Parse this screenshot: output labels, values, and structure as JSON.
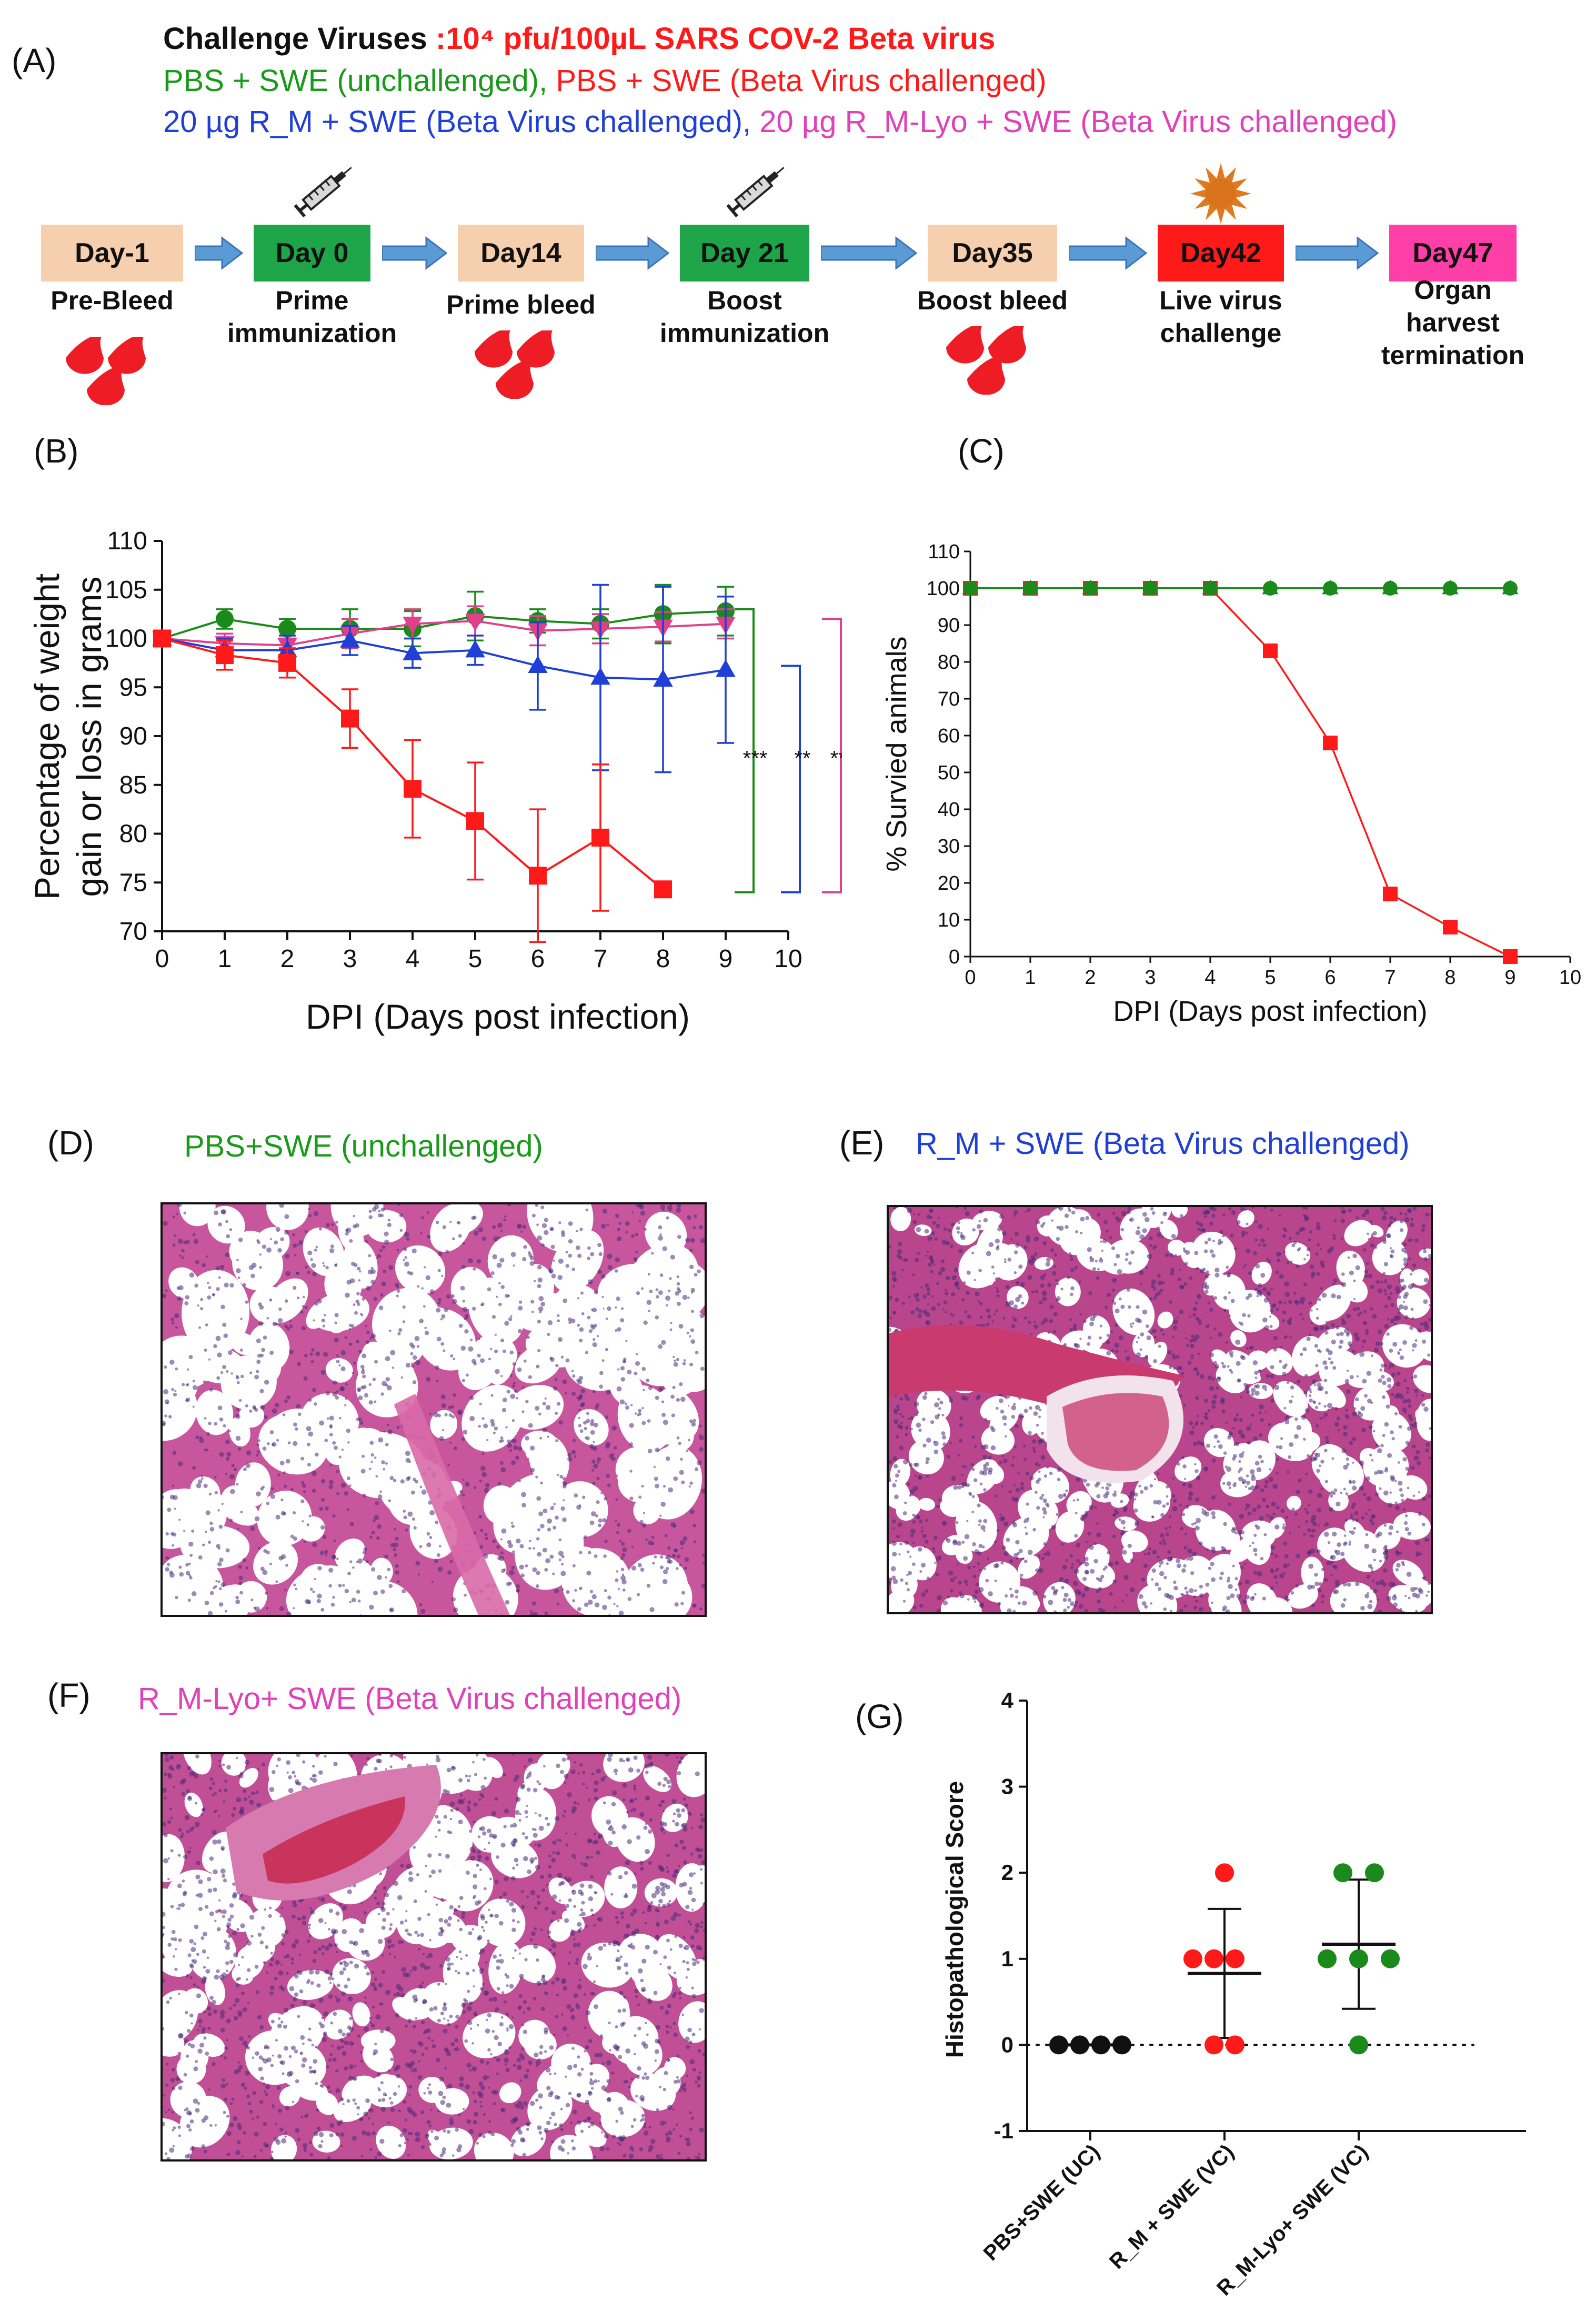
{
  "panelA": {
    "letter": "(A)",
    "line1_prefix": "Challenge Viruses ",
    "line1_highlight": ":10⁴ pfu/100µL SARS COV-2 Beta virus",
    "line2_part1": "PBS + SWE (unchallenged), ",
    "line2_part2": "PBS + SWE (Beta Virus challenged)",
    "line3_part1": "20 µg R_M + SWE (Beta Virus challenged), ",
    "line3_part2": "20 µg R_M-Lyo + SWE (Beta Virus challenged)",
    "timeline": [
      {
        "day": "Day-1",
        "label": "Pre-Bleed",
        "color": "#f6cfae",
        "icon": "blood-drops-icon"
      },
      {
        "day": "Day 0",
        "label": "Prime\nimmunization",
        "color": "#1ea54a",
        "icon": "syringe-icon"
      },
      {
        "day": "Day14",
        "label": "Prime bleed",
        "color": "#f6cfae",
        "icon": "blood-drops-icon"
      },
      {
        "day": "Day 21",
        "label": "Boost\nimmunization",
        "color": "#1ea54a",
        "icon": "syringe-icon"
      },
      {
        "day": "Day35",
        "label": "Boost bleed",
        "color": "#f6cfae",
        "icon": "blood-drops-icon"
      },
      {
        "day": "Day42",
        "label": "Live virus\nchallenge",
        "color": "#ff1a1a",
        "icon": "virus-icon"
      },
      {
        "day": "Day47",
        "label": "Organ\nharvest\ntermination",
        "color": "#ff3fa8",
        "icon": ""
      }
    ]
  },
  "panelB": {
    "letter": "(B)"
  },
  "panelC": {
    "letter": "(C)"
  },
  "panelD": {
    "letter": "(D)",
    "title": "PBS+SWE (unchallenged)",
    "title_color": "#1a9a1a"
  },
  "panelE": {
    "letter": "(E)",
    "title": "R_M + SWE  (Beta Virus challenged)",
    "title_color": "#1f3fd6"
  },
  "panelF": {
    "letter": "(F)",
    "title": "R_M-Lyo+ SWE (Beta Virus challenged)",
    "title_color": "#e040b8"
  },
  "panelG": {
    "letter": "(G)"
  },
  "chart_data": [
    {
      "id": "B",
      "type": "line",
      "title": "",
      "xlabel": "DPI (Days post infection)",
      "ylabel": "Percentage of weight gain or loss in grams",
      "xlim": [
        0,
        10
      ],
      "ylim": [
        70,
        110
      ],
      "xticks": [
        0,
        1,
        2,
        3,
        4,
        5,
        6,
        7,
        8,
        9,
        10
      ],
      "yticks": [
        70,
        75,
        80,
        85,
        90,
        95,
        100,
        105,
        110
      ],
      "series": [
        {
          "name": "PBS + SWE (unchallenged)",
          "color": "#1a8a1a",
          "marker": "circle",
          "x": [
            0,
            1,
            2,
            3,
            4,
            5,
            6,
            7,
            8,
            9
          ],
          "y": [
            100,
            102,
            101,
            101,
            101,
            102.3,
            101.8,
            101.5,
            102.5,
            102.8
          ],
          "err": [
            0.5,
            1.0,
            1.0,
            2.0,
            1.8,
            2.5,
            1.2,
            1.5,
            3.0,
            2.5
          ]
        },
        {
          "name": "PBS + SWE (Beta Virus challenged)",
          "color": "#ff1a1a",
          "marker": "square",
          "x": [
            0,
            1,
            2,
            3,
            4,
            5,
            6,
            7,
            8
          ],
          "y": [
            100,
            98.3,
            97.5,
            91.8,
            84.6,
            81.3,
            75.7,
            79.6,
            74.3
          ],
          "err": [
            0.5,
            1.5,
            1.5,
            3.0,
            5.0,
            6.0,
            6.8,
            7.5,
            0
          ]
        },
        {
          "name": "20 µg R_M + SWE (Beta Virus challenged)",
          "color": "#1f3fd6",
          "marker": "triangle",
          "x": [
            0,
            1,
            2,
            3,
            4,
            5,
            6,
            7,
            8,
            9
          ],
          "y": [
            100,
            98.8,
            98.8,
            99.8,
            98.5,
            98.8,
            97.2,
            96,
            95.8,
            96.8
          ],
          "err": [
            0.5,
            1.2,
            1.5,
            1.5,
            1.5,
            1.5,
            4.5,
            9.5,
            9.5,
            7.5
          ]
        },
        {
          "name": "20 µg R_M-Lyo + SWE (Beta Virus challenged)",
          "color": "#e0408a",
          "marker": "triangle-down",
          "x": [
            0,
            1,
            2,
            3,
            4,
            5,
            6,
            7,
            8,
            9
          ],
          "y": [
            100,
            99.5,
            99.3,
            100.5,
            101.5,
            101.8,
            100.8,
            101,
            101.2,
            101.5
          ],
          "err": [
            0.5,
            1.0,
            1.0,
            1.5,
            1.5,
            1.5,
            1.5,
            1.5,
            1.5,
            1.5
          ]
        }
      ],
      "significance": [
        {
          "label": "***",
          "color": "#1a8a1a",
          "y_top": 103,
          "y_bottom": 74
        },
        {
          "label": "**",
          "color": "#1f3fd6",
          "y_top": 97.2,
          "y_bottom": 74
        },
        {
          "label": "***",
          "color": "#e0408a",
          "y_top": 102,
          "y_bottom": 74
        }
      ]
    },
    {
      "id": "C",
      "type": "line",
      "title": "",
      "xlabel": "DPI (Days post infection)",
      "ylabel": "% Survied animals",
      "xlim": [
        0,
        10
      ],
      "ylim": [
        0,
        110
      ],
      "xticks": [
        0,
        1,
        2,
        3,
        4,
        5,
        6,
        7,
        8,
        9,
        10
      ],
      "yticks": [
        0,
        10,
        20,
        30,
        40,
        50,
        60,
        70,
        80,
        90,
        100,
        110
      ],
      "series": [
        {
          "name": "PBS + SWE (unchallenged)",
          "color": "#1a8a1a",
          "marker": "circle",
          "x": [
            0,
            1,
            2,
            3,
            4,
            5,
            6,
            7,
            8,
            9
          ],
          "y": [
            100,
            100,
            100,
            100,
            100,
            100,
            100,
            100,
            100,
            100
          ]
        },
        {
          "name": "R_M + SWE",
          "color": "#1f3fd6",
          "marker": "triangle",
          "x": [
            0,
            1,
            2,
            3,
            4,
            5,
            6,
            7,
            8,
            9
          ],
          "y": [
            100,
            100,
            100,
            100,
            100,
            100,
            100,
            100,
            100,
            100
          ]
        },
        {
          "name": "R_M-Lyo + SWE",
          "color": "#1a8a1a",
          "marker": "triangle",
          "x": [
            0,
            1,
            2,
            3,
            4,
            5,
            6,
            7,
            8,
            9
          ],
          "y": [
            100,
            100,
            100,
            100,
            100,
            100,
            100,
            100,
            100,
            100
          ]
        },
        {
          "name": "PBS + SWE (Beta Virus challenged)",
          "color": "#ff1a1a",
          "marker": "square",
          "x": [
            0,
            1,
            2,
            3,
            4,
            5,
            6,
            7,
            8,
            9
          ],
          "y": [
            100,
            100,
            100,
            100,
            100,
            83,
            58,
            17,
            8,
            0
          ]
        }
      ]
    },
    {
      "id": "G",
      "type": "scatter",
      "title": "",
      "xlabel": "",
      "ylabel": "Histopathological Score",
      "ylim": [
        -1,
        4
      ],
      "yticks": [
        -1,
        0,
        1,
        2,
        3,
        4
      ],
      "categories": [
        "PBS+SWE (UC)",
        "R_M + SWE (VC)",
        "R_M-Lyo+ SWE (VC)"
      ],
      "groups": [
        {
          "category": "PBS+SWE (UC)",
          "color": "#111111",
          "points": [
            0,
            0,
            0,
            0
          ],
          "mean": 0,
          "sd": 0
        },
        {
          "category": "R_M + SWE (VC)",
          "color": "#ff1a1a",
          "points": [
            2,
            1,
            1,
            1,
            0,
            0
          ],
          "mean": 0.83,
          "sd": 0.75
        },
        {
          "category": "R_M-Lyo+ SWE (VC)",
          "color": "#1a8a1a",
          "points": [
            2,
            2,
            1,
            1,
            1,
            0
          ],
          "mean": 1.17,
          "sd": 0.75
        }
      ],
      "reference_line": 0
    }
  ]
}
